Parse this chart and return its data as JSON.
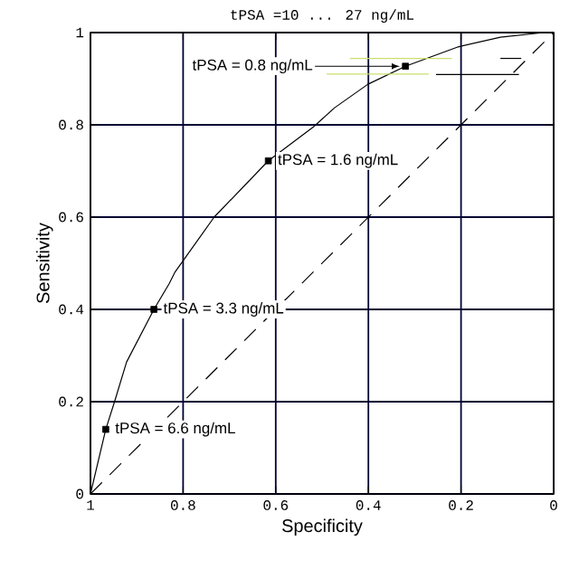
{
  "chart_data": {
    "type": "line",
    "title": "tPSA =10 ... 27 ng/mL",
    "xlabel": "Specificity",
    "ylabel": "Sensitivity",
    "xlim": [
      1,
      0
    ],
    "ylim": [
      0,
      1
    ],
    "xticks": [
      1,
      0.8,
      0.6,
      0.4,
      0.2,
      0
    ],
    "yticks": [
      0,
      0.2,
      0.4,
      0.6,
      0.8,
      1
    ],
    "grid": true,
    "series": [
      {
        "color": "#000000",
        "line_style": "solid",
        "marker": "none",
        "x": [
          1,
          0.967,
          0.948,
          0.922,
          0.863,
          0.83,
          0.818,
          0.733,
          0.616,
          0.518,
          0.473,
          0.401,
          0.32,
          0.206,
          0.115,
          0.03,
          0
        ],
        "values": [
          0,
          0.14,
          0.2,
          0.286,
          0.4,
          0.456,
          0.48,
          0.6,
          0.722,
          0.796,
          0.837,
          0.888,
          0.927,
          0.969,
          0.99,
          0.999,
          1
        ]
      },
      {
        "type": "scatter",
        "color": "#000000",
        "marker": "square",
        "x": [
          0.967,
          0.863,
          0.616,
          0.32
        ],
        "values": [
          0.14,
          0.4,
          0.722,
          0.927
        ]
      },
      {
        "color": "#000000",
        "line_style": "dashed",
        "marker": "none",
        "x": [
          1,
          0
        ],
        "values": [
          0,
          1
        ]
      },
      {
        "color": "#c8e06e",
        "line_style": "solid",
        "marker": "none",
        "x": [
          0.44,
          0.22
        ],
        "values": [
          0.944,
          0.944
        ]
      },
      {
        "color": "#c8e06e",
        "line_style": "solid",
        "marker": "none",
        "x": [
          0.49,
          0.27
        ],
        "values": [
          0.91,
          0.91
        ]
      },
      {
        "color": "#000000",
        "line_style": "solid",
        "marker": "none",
        "x": [
          0.115,
          0.07
        ],
        "values": [
          0.944,
          0.944
        ]
      },
      {
        "color": "#000000",
        "line_style": "solid",
        "marker": "none",
        "x": [
          0.254,
          0.075
        ],
        "values": [
          0.909,
          0.909
        ]
      }
    ],
    "annotations": [
      {
        "text": "tPSA = 0.8 ng/mL",
        "x": 0.32,
        "y": 0.927
      },
      {
        "text": "tPSA = 1.6 ng/mL",
        "x": 0.616,
        "y": 0.722
      },
      {
        "text": "tPSA = 3.3 ng/mL",
        "x": 0.863,
        "y": 0.4
      },
      {
        "text": "tPSA = 6.6 ng/mL",
        "x": 0.967,
        "y": 0.14
      }
    ]
  }
}
